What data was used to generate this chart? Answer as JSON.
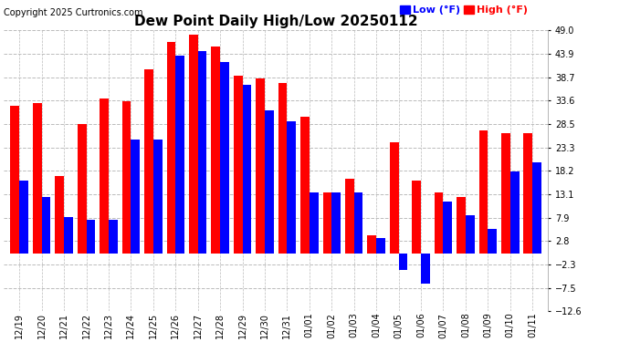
{
  "title": "Dew Point Daily High/Low 20250112",
  "copyright": "Copyright 2025 Curtronics.com",
  "legend_low": "Low (°F)",
  "legend_high": "High (°F)",
  "categories": [
    "12/19",
    "12/20",
    "12/21",
    "12/22",
    "12/23",
    "12/24",
    "12/25",
    "12/26",
    "12/27",
    "12/28",
    "12/29",
    "12/30",
    "12/31",
    "01/01",
    "01/02",
    "01/03",
    "01/04",
    "01/05",
    "01/06",
    "01/07",
    "01/08",
    "01/09",
    "01/10",
    "01/11"
  ],
  "high_values": [
    32.5,
    33.0,
    17.0,
    28.5,
    34.0,
    33.5,
    40.5,
    46.5,
    48.0,
    45.5,
    39.0,
    38.5,
    37.5,
    30.0,
    13.5,
    16.5,
    4.0,
    24.5,
    16.0,
    13.5,
    12.5,
    27.0,
    26.5,
    26.5
  ],
  "low_values": [
    16.0,
    12.5,
    8.0,
    7.5,
    7.5,
    25.0,
    25.0,
    43.5,
    44.5,
    42.0,
    37.0,
    31.5,
    29.0,
    13.5,
    13.5,
    13.5,
    3.5,
    -3.5,
    -6.5,
    11.5,
    8.5,
    5.5,
    18.0,
    20.0
  ],
  "ylim": [
    -12.6,
    49.0
  ],
  "yticks": [
    -12.6,
    -7.5,
    -2.3,
    2.8,
    7.9,
    13.1,
    18.2,
    23.3,
    28.5,
    33.6,
    38.7,
    43.9,
    49.0
  ],
  "bar_color_high": "#ff0000",
  "bar_color_low": "#0000ff",
  "bg_color": "#ffffff",
  "grid_color": "#bbbbbb",
  "title_fontsize": 11,
  "tick_fontsize": 7,
  "copyright_fontsize": 7,
  "legend_fontsize": 8
}
